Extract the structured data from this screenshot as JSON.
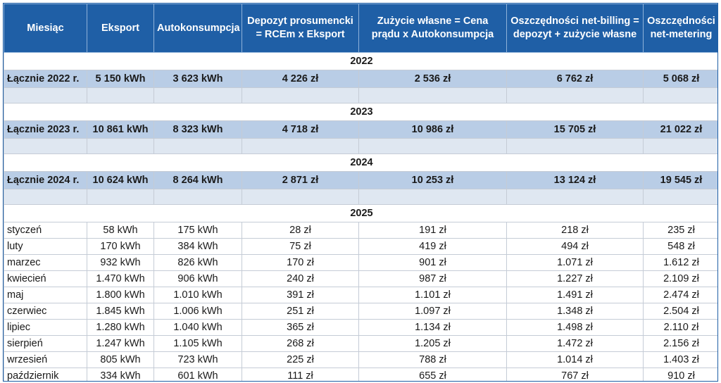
{
  "headers": [
    "Miesiąc",
    "Eksport",
    "Autokonsumpcja",
    "Depozyt prosumencki = RCEm x Eksport",
    "Zużycie własne = Cena prądu x Autokonsumpcja",
    "Oszczędności net-billing = depozyt + zużycie własne",
    "Oszczędności net-metering"
  ],
  "years": [
    "2022",
    "2023",
    "2024",
    "2025"
  ],
  "totals": [
    [
      "Łącznie 2022 r.",
      "5 150 kWh",
      "3 623 kWh",
      "4 226 zł",
      "2 536 zł",
      "6 762 zł",
      "5 068 zł"
    ],
    [
      "Łącznie 2023 r.",
      "10 861 kWh",
      "8 323 kWh",
      "4 718 zł",
      "10 986 zł",
      "15 705 zł",
      "21 022 zł"
    ],
    [
      "Łącznie 2024 r.",
      "10 624 kWh",
      "8 264 kWh",
      "2 871 zł",
      "10 253 zł",
      "13 124 zł",
      "19 545 zł"
    ]
  ],
  "months_2025": [
    [
      "styczeń",
      "58 kWh",
      "175 kWh",
      "28 zł",
      "191 zł",
      "218 zł",
      "235 zł"
    ],
    [
      "luty",
      "170 kWh",
      "384 kWh",
      "75 zł",
      "419 zł",
      "494 zł",
      "548 zł"
    ],
    [
      "marzec",
      "932 kWh",
      "826 kWh",
      "170 zł",
      "901 zł",
      "1.071 zł",
      "1.612 zł"
    ],
    [
      "kwiecień",
      "1.470 kWh",
      "906 kWh",
      "240 zł",
      "987 zł",
      "1.227 zł",
      "2.109 zł"
    ],
    [
      "maj",
      "1.800 kWh",
      "1.010 kWh",
      "391 zł",
      "1.101 zł",
      "1.491 zł",
      "2.474 zł"
    ],
    [
      "czerwiec",
      "1.845 kWh",
      "1.006 kWh",
      "251 zł",
      "1.097 zł",
      "1.348 zł",
      "2.504 zł"
    ],
    [
      "lipiec",
      "1.280 kWh",
      "1.040 kWh",
      "365 zł",
      "1.134 zł",
      "1.498 zł",
      "2.110 zł"
    ],
    [
      "sierpień",
      "1.247 kWh",
      "1.105 kWh",
      "268 zł",
      "1.205 zł",
      "1.472 zł",
      "2.156 zł"
    ],
    [
      "wrzesień",
      "805 kWh",
      "723 kWh",
      "225 zł",
      "788 zł",
      "1.014 zł",
      "1.403 zł"
    ],
    [
      "październik",
      "334 kWh",
      "601 kWh",
      "111 zł",
      "655 zł",
      "767 zł",
      "910 zł"
    ]
  ],
  "colors": {
    "header_bg": "#1f5fa6",
    "total_row_bg": "#b9cde6",
    "spacer_bg": "#dfe7f1"
  }
}
